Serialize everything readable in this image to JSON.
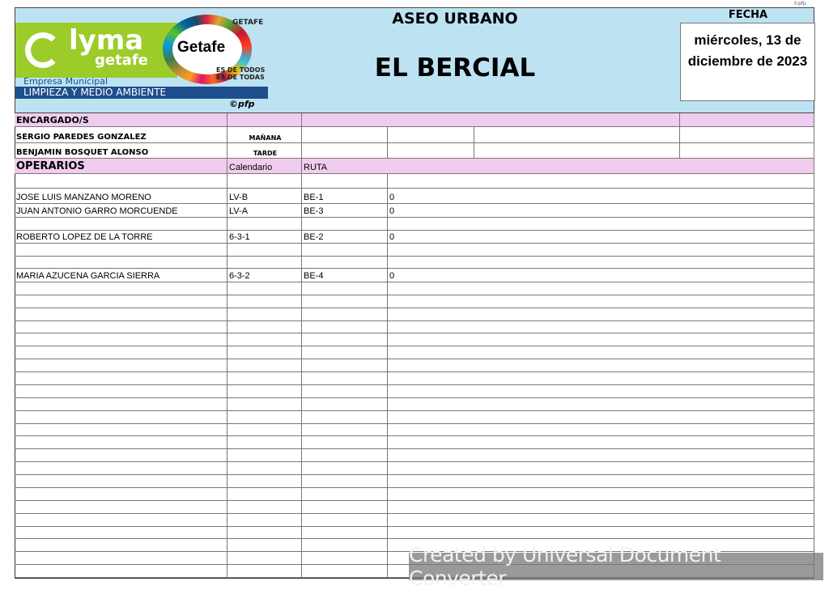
{
  "copyright_small": "©pfp",
  "logo": {
    "brand": "LYMA getafe",
    "partner": "Getafe",
    "ayto": "GETAFE",
    "slogan1": "ES DE TODOS",
    "slogan2": "ES DE TODAS",
    "company": "Empresa Municipal",
    "company_line": "LIMPIEZA Y MEDIO AMBIENTE",
    "copyright": "©pfp"
  },
  "header": {
    "title": "ASEO URBANO",
    "location": "EL BERCIAL",
    "date_label": "FECHA",
    "date_value": "miércoles, 13 de diciembre de 2023"
  },
  "encargados": {
    "label": "ENCARGADO/S",
    "rows": [
      {
        "name": "SERGIO PAREDES GONZALEZ",
        "shift": "MAÑANA"
      },
      {
        "name": "BENJAMIN BOSQUET ALONSO",
        "shift": "TARDE"
      }
    ]
  },
  "operarios": {
    "label": "OPERARIOS",
    "col_calendar": "Calendario",
    "col_route": "RUTA",
    "rows": [
      {
        "name": "",
        "calendar": "",
        "route": "",
        "value": ""
      },
      {
        "name": "JOSE LUIS MANZANO MORENO",
        "calendar": "LV-B",
        "route": "BE-1",
        "value": "0"
      },
      {
        "name": "JUAN ANTONIO GARRO MORCUENDE",
        "calendar": "LV-A",
        "route": "BE-3",
        "value": "0"
      },
      {
        "name": "",
        "calendar": "",
        "route": "",
        "value": ""
      },
      {
        "name": "ROBERTO LOPEZ DE LA TORRE",
        "calendar": "6-3-1",
        "route": "BE-2",
        "value": "0"
      },
      {
        "name": "",
        "calendar": "",
        "route": "",
        "value": ""
      },
      {
        "name": "",
        "calendar": "",
        "route": "",
        "value": ""
      },
      {
        "name": "MARIA AZUCENA GARCIA SIERRA",
        "calendar": "6-3-2",
        "route": "BE-4",
        "value": "0"
      }
    ],
    "empty_rows_after": 23
  },
  "watermark": "Created by Universal Document Converter",
  "colors": {
    "header_bg": "#bde3f3",
    "section_bg": "#f0cdee",
    "logo_green": "#9ccc2a",
    "logo_blue": "#1f4e8c"
  }
}
